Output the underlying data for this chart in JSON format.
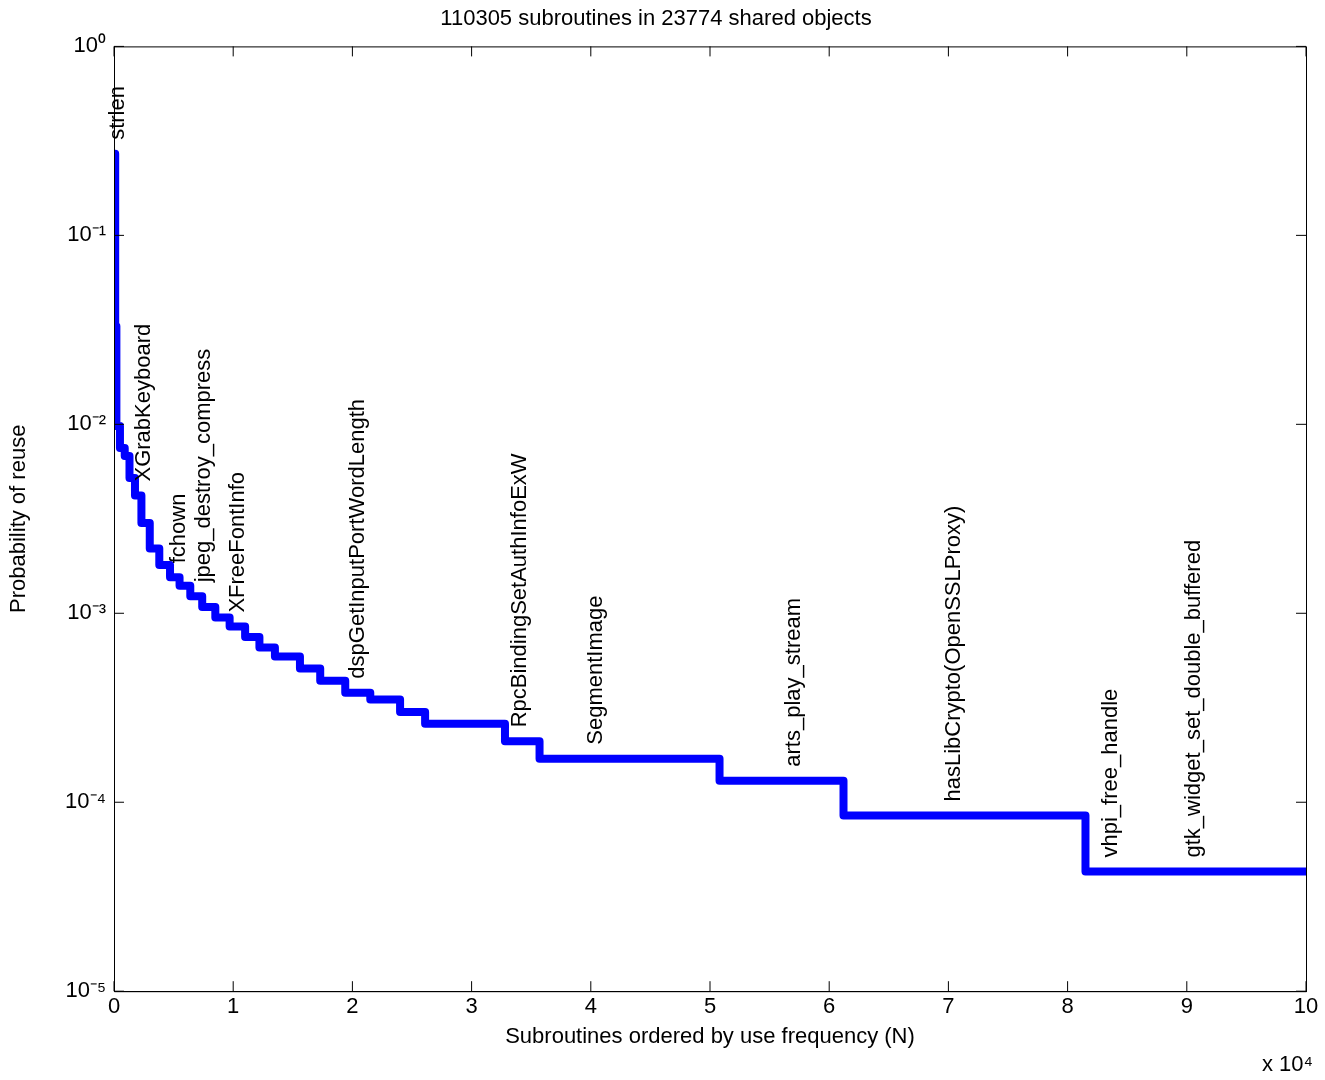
{
  "chart_data": {
    "type": "step",
    "title": "110305 subroutines in 23774 shared objects",
    "xlabel": "Subroutines ordered by use frequency (N)",
    "ylabel": "Probability of reuse",
    "x": [
      0,
      0.01,
      0.02,
      0.05,
      0.09,
      0.13,
      0.176,
      0.23,
      0.3,
      0.38,
      0.47,
      0.55,
      0.64,
      0.74,
      0.85,
      0.97,
      1.1,
      1.22,
      1.35,
      1.56,
      1.73,
      1.94,
      2.15,
      2.4,
      2.61,
      3.28,
      3.57,
      5.08,
      6.12,
      8.15,
      10
    ],
    "values": [
      0.27,
      0.033,
      0.0098,
      0.0075,
      0.0068,
      0.0052,
      0.0042,
      0.003,
      0.0022,
      0.0018,
      0.00155,
      0.0014,
      0.00123,
      0.00108,
      0.00095,
      0.00085,
      0.00075,
      0.00066,
      0.00059,
      0.00051,
      0.00044,
      0.00038,
      0.00035,
      0.0003,
      0.00026,
      0.00021,
      0.00017,
      0.00013,
      8.5e-05,
      4.3e-05,
      4.3e-05
    ],
    "color": "#0000ff",
    "marker": "none",
    "line_style": "solid",
    "log": true,
    "xlim": [
      0,
      10
    ],
    "xticks": [
      0,
      1,
      2,
      3,
      4,
      5,
      6,
      7,
      8,
      9,
      10
    ],
    "ylim": [
      1e-05,
      1
    ],
    "yticks": [
      {
        "value": 1e-05,
        "label": "10⁻⁵"
      },
      {
        "value": 0.0001,
        "label": "10⁻⁴"
      },
      {
        "value": 0.001,
        "label": "10⁻³"
      },
      {
        "value": 0.01,
        "label": "10⁻²"
      },
      {
        "value": 0.1,
        "label": "10⁻¹"
      },
      {
        "value": 1,
        "label": "10⁰"
      }
    ],
    "annotations": [
      {
        "text": "strlen",
        "x": 0,
        "y": 0.27
      },
      {
        "text": "XGrabKeyboard",
        "x": 0.22,
        "y": 0.0042
      },
      {
        "text": "fchown",
        "x": 0.51,
        "y": 0.00155
      },
      {
        "text": "jpeg_destroy_compress",
        "x": 0.72,
        "y": 0.00123
      },
      {
        "text": "XFreeFontInfo",
        "x": 1.01,
        "y": 0.00085
      },
      {
        "text": "dspGetInputPortWordLength",
        "x": 2.01,
        "y": 0.00038
      },
      {
        "text": "RpcBindingSetAuthInfoExW",
        "x": 3.37,
        "y": 0.00021
      },
      {
        "text": "SegmentImage",
        "x": 4.01,
        "y": 0.00017
      },
      {
        "text": "arts_play_stream",
        "x": 5.67,
        "y": 0.00013
      },
      {
        "text": "hasLibCrypto(OpenSSLProxy)",
        "x": 7.01,
        "y": 8.5e-05
      },
      {
        "text": "vhpi_free_handle",
        "x": 8.33,
        "y": 4.3e-05
      },
      {
        "text": "gtk_widget_set_double_buffered",
        "x": 9.03,
        "y": 4.3e-05
      },
      "x 10⁴"
    ]
  }
}
